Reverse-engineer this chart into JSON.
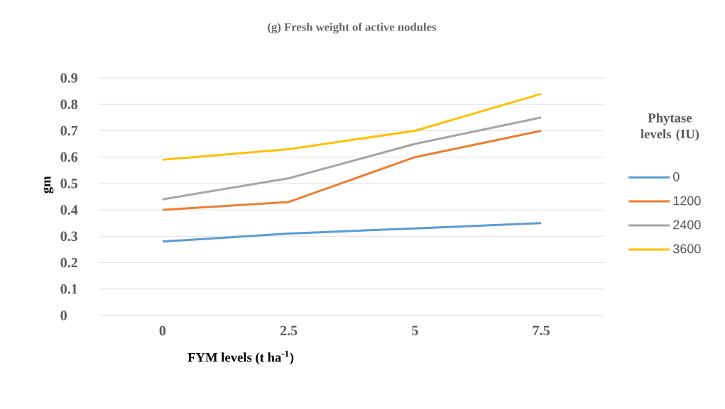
{
  "chart_data": {
    "type": "line",
    "title": "(g) Fresh weight of active nodules",
    "xlabel": "FYM levels (t ha$^{-1}$)",
    "ylabel": "gm",
    "legend_title": "Phytase levels (IU)",
    "categories": [
      "0",
      "2.5",
      "5",
      "7.5"
    ],
    "series": [
      {
        "name": "0",
        "color": "#5b9bd5",
        "values": [
          0.28,
          0.31,
          0.33,
          0.35
        ]
      },
      {
        "name": "1200",
        "color": "#ed7d31",
        "values": [
          0.4,
          0.43,
          0.6,
          0.7
        ]
      },
      {
        "name": "2400",
        "color": "#a5a5a5",
        "values": [
          0.44,
          0.52,
          0.65,
          0.75
        ]
      },
      {
        "name": "3600",
        "color": "#ffc000",
        "values": [
          0.59,
          0.63,
          0.7,
          0.84
        ]
      }
    ],
    "ylim": [
      0,
      0.9
    ],
    "yticks": [
      0,
      0.1,
      0.2,
      0.3,
      0.4,
      0.5,
      0.6,
      0.7,
      0.8,
      0.9
    ],
    "grid": "y",
    "legend": "right",
    "marker": "none",
    "line_style": "solid"
  }
}
